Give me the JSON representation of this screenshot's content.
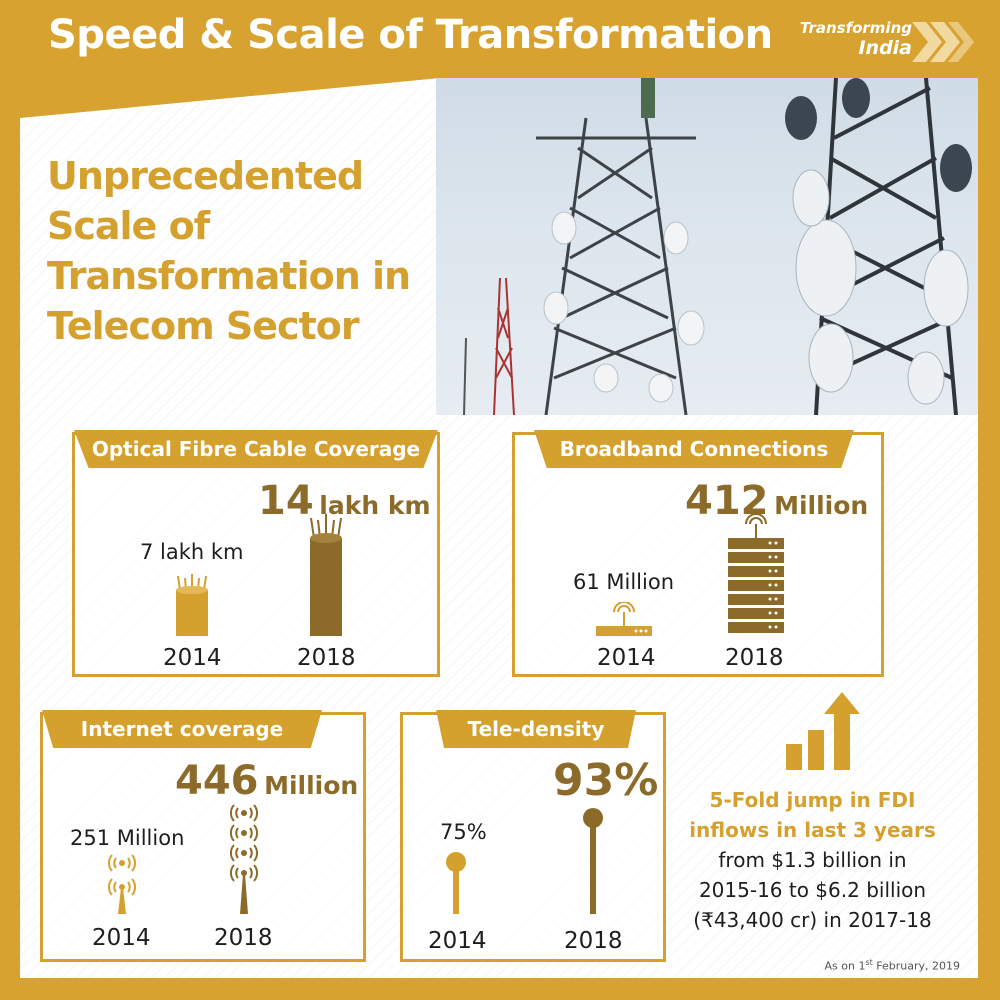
{
  "header": {
    "title": "Speed & Scale of Transformation"
  },
  "brand": {
    "line1": "Transforming",
    "line2": "India"
  },
  "headline": {
    "lines": [
      "Unprecedented",
      "Scale of",
      "Transformation in",
      "Telecom Sector"
    ]
  },
  "optical_fibre": {
    "label": "Optical Fibre Cable Coverage",
    "value_2014": "7 lakh km",
    "value_2018_num": "14",
    "value_2018_unit": "lakh km",
    "year_2014": "2014",
    "year_2018": "2018"
  },
  "broadband": {
    "label": "Broadband Connections",
    "value_2014": "61 Million",
    "value_2018_num": "412",
    "value_2018_unit": "Million",
    "year_2014": "2014",
    "year_2018": "2018"
  },
  "internet": {
    "label": "Internet coverage",
    "value_2014": "251 Million",
    "value_2018_num": "446",
    "value_2018_unit": "Million",
    "year_2014": "2014",
    "year_2018": "2018"
  },
  "teledensity": {
    "label": "Tele-density",
    "value_2014": "75%",
    "value_2018": "93%",
    "year_2014": "2014",
    "year_2018": "2018"
  },
  "fdi": {
    "headline_1": "5-Fold jump in FDI",
    "headline_2": "inflows in last 3 years",
    "line_1": "from $1.3 billion in",
    "line_2": "2015-16 to $6.2 billion",
    "line_3": "(₹43,400 cr) in 2017-18"
  },
  "footnote": {
    "prefix": "As on 1",
    "sup": "st",
    "suffix": " February, 2019"
  },
  "colors": {
    "gold": "#d4a12e",
    "dark_gold": "#8c6b2a",
    "background": "#d7a22f"
  }
}
